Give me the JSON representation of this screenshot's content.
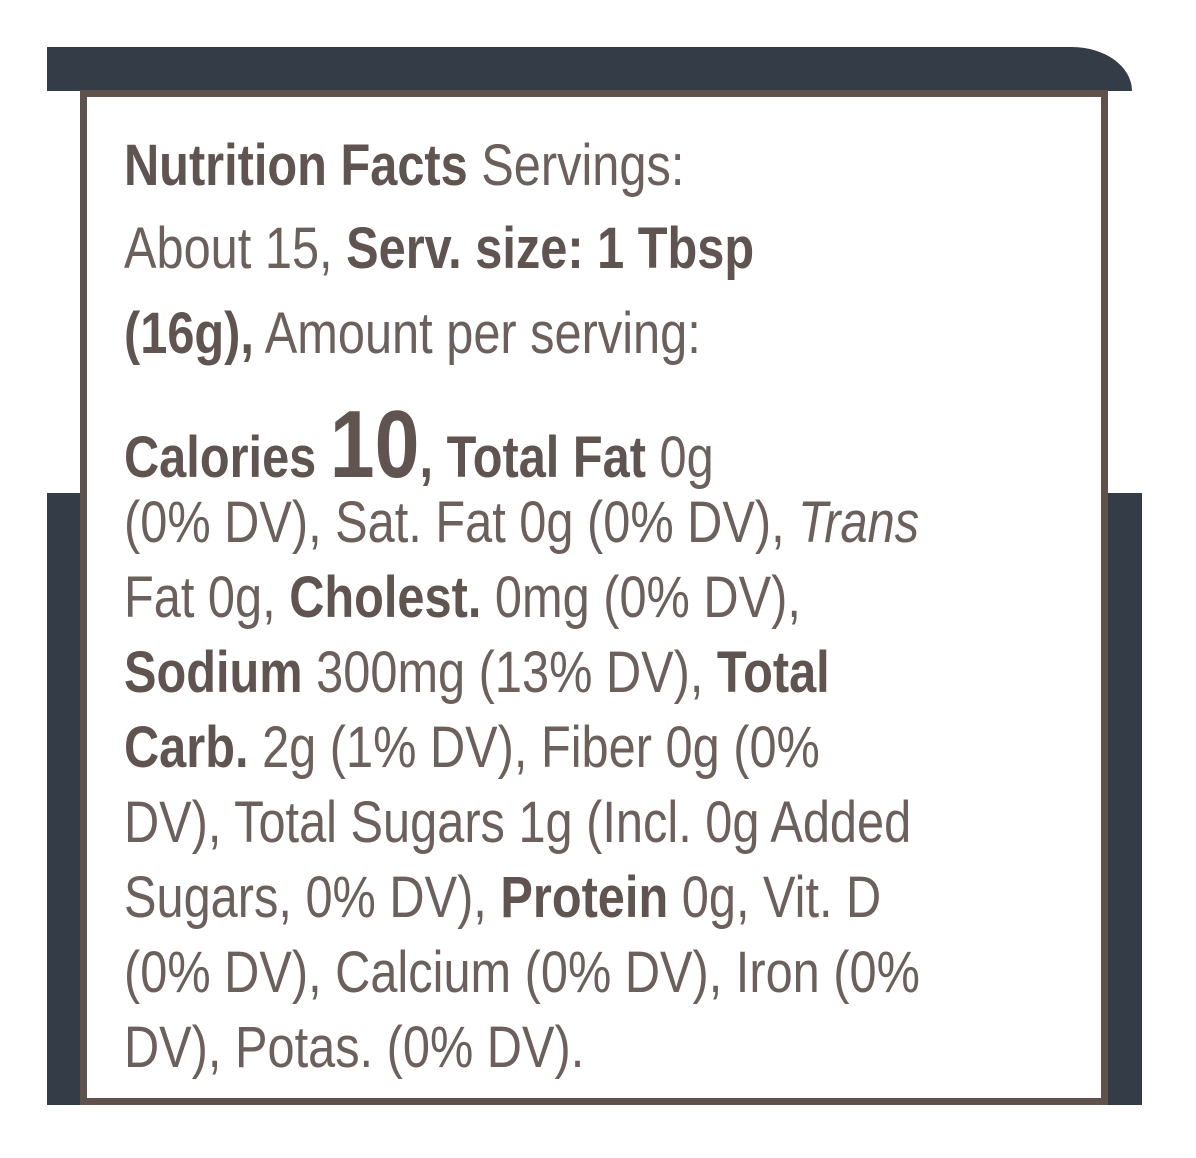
{
  "colors": {
    "band": "#333c47",
    "border": "#5f524c",
    "text": "#6b605b"
  },
  "label": {
    "lines": [
      [
        {
          "t": "Nutrition Facts",
          "s": "b"
        },
        {
          "t": " Servings:",
          "s": "n"
        }
      ],
      [
        {
          "t": "About 15, ",
          "s": "n"
        },
        {
          "t": "Serv. size: 1 Tbsp",
          "s": "b"
        }
      ],
      [
        {
          "t": "(16g),",
          "s": "b"
        },
        {
          "t": " Amount per serving:",
          "s": "n"
        }
      ],
      [
        {
          "t": "Calories ",
          "s": "b"
        },
        {
          "t": "10",
          "s": "big"
        },
        {
          "t": ", ",
          "s": "b"
        },
        {
          "t": "Total Fat",
          "s": "b"
        },
        {
          "t": " 0g",
          "s": "n"
        }
      ],
      [
        {
          "t": "(0% DV), Sat. Fat 0g (0% DV), ",
          "s": "n"
        },
        {
          "t": "Trans",
          "s": "i"
        }
      ],
      [
        {
          "t": "Fat 0g, ",
          "s": "n"
        },
        {
          "t": "Cholest.",
          "s": "b"
        },
        {
          "t": " 0mg (0% DV),",
          "s": "n"
        }
      ],
      [
        {
          "t": "Sodium",
          "s": "b"
        },
        {
          "t": " 300mg (13% DV), ",
          "s": "n"
        },
        {
          "t": "Total",
          "s": "b"
        }
      ],
      [
        {
          "t": "Carb.",
          "s": "b"
        },
        {
          "t": " 2g (1% DV), Fiber 0g (0%",
          "s": "n"
        }
      ],
      [
        {
          "t": "DV), Total Sugars 1g (Incl. 0g Added",
          "s": "n"
        }
      ],
      [
        {
          "t": "Sugars, 0% DV), ",
          "s": "n"
        },
        {
          "t": "Protein",
          "s": "b"
        },
        {
          "t": " 0g, Vit. D",
          "s": "n"
        }
      ],
      [
        {
          "t": "(0% DV), Calcium (0% DV), Iron (0%",
          "s": "n"
        }
      ],
      [
        {
          "t": "DV), Potas. (0% DV).",
          "s": "n"
        }
      ]
    ]
  }
}
